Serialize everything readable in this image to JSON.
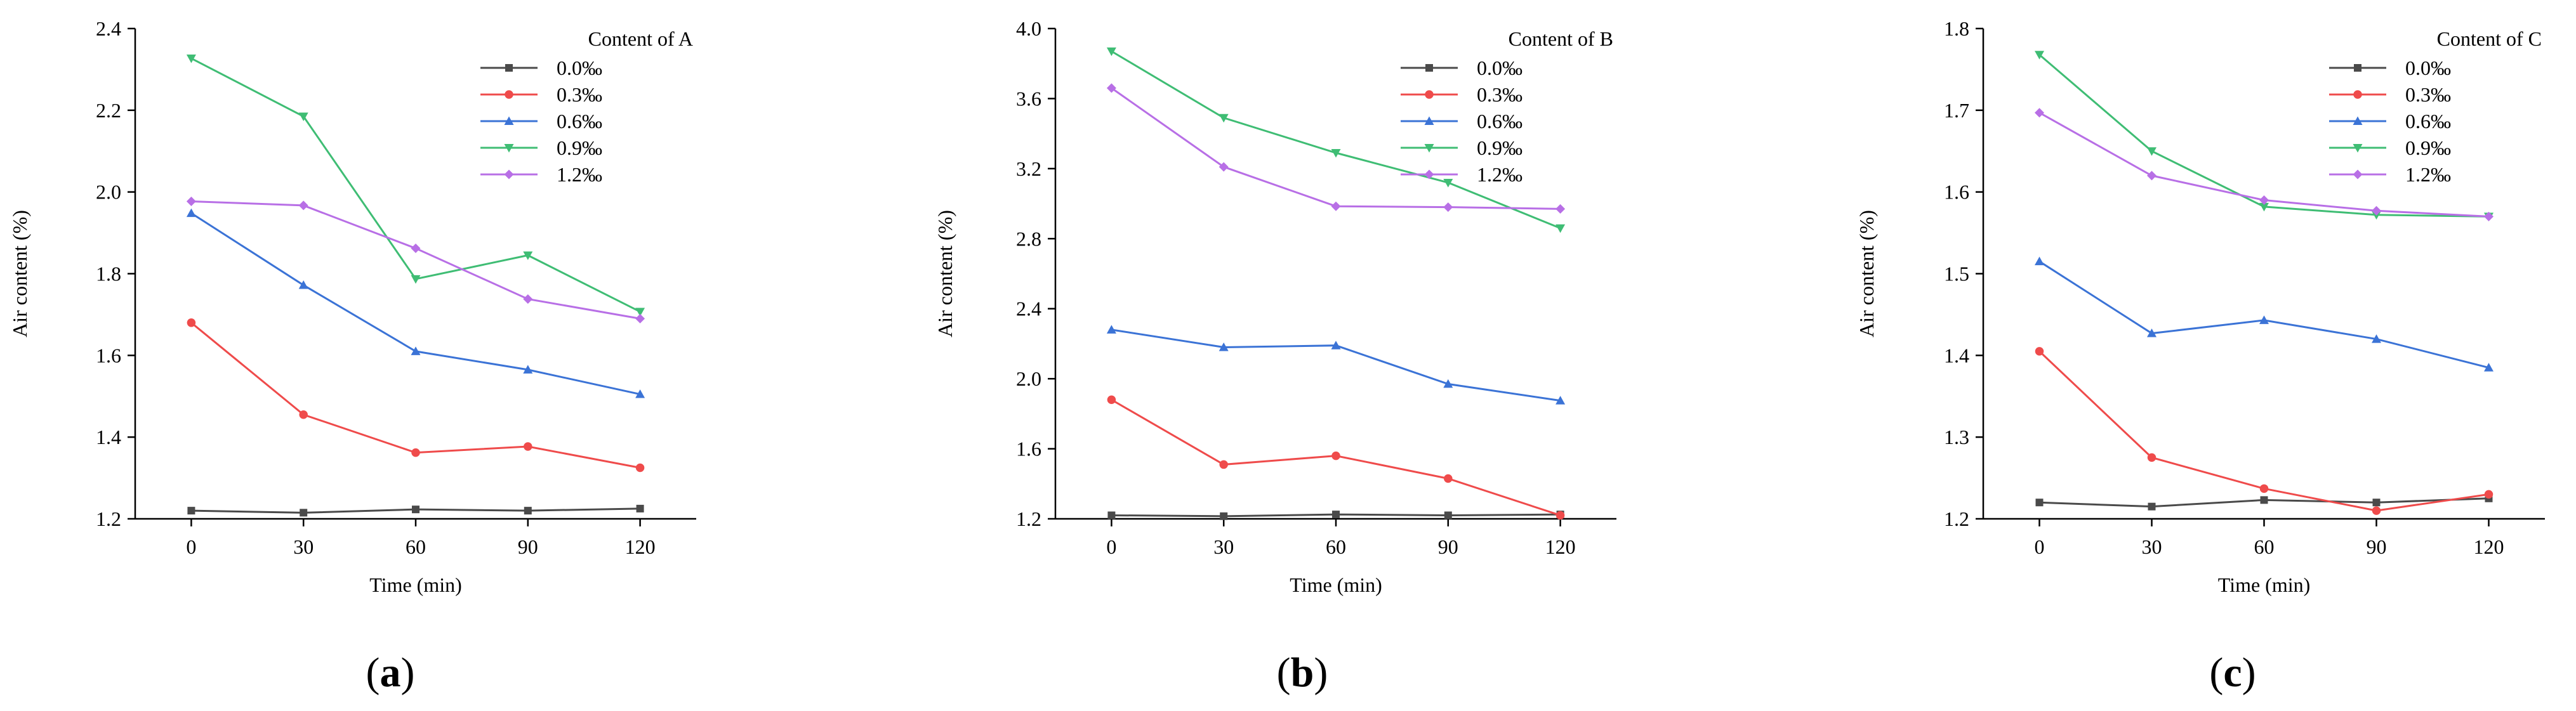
{
  "figure": {
    "captions": [
      {
        "open": "(",
        "letter": "a",
        "close": ")"
      },
      {
        "open": "(",
        "letter": "b",
        "close": ")"
      },
      {
        "open": "(",
        "letter": "c",
        "close": ")"
      }
    ]
  },
  "chart_data": [
    {
      "type": "line",
      "panel": "a",
      "title": "",
      "xlabel": "Time (min)",
      "ylabel": "Air content (%)",
      "x": [
        0,
        30,
        60,
        90,
        120
      ],
      "xlim": [
        -15,
        135
      ],
      "ylim": [
        1.2,
        2.4
      ],
      "xticks": [
        "0",
        "30",
        "60",
        "90",
        "120"
      ],
      "yticks": [
        "1.2",
        "1.4",
        "1.6",
        "1.8",
        "2.0",
        "2.2",
        "2.4"
      ],
      "legend_title": "Content of A",
      "legend_position": "top-right",
      "series": [
        {
          "name": "0.0‰",
          "color": "#4a4a4a",
          "marker": "square",
          "values": [
            1.22,
            1.215,
            1.223,
            1.22,
            1.225
          ]
        },
        {
          "name": "0.3‰",
          "color": "#ef4b4b",
          "marker": "circle",
          "values": [
            1.68,
            1.455,
            1.362,
            1.377,
            1.325
          ]
        },
        {
          "name": "0.6‰",
          "color": "#3b73d6",
          "marker": "triangle-up",
          "values": [
            1.948,
            1.772,
            1.61,
            1.565,
            1.505
          ]
        },
        {
          "name": "0.9‰",
          "color": "#3fbd74",
          "marker": "triangle-down",
          "values": [
            2.327,
            2.185,
            1.787,
            1.845,
            1.707
          ]
        },
        {
          "name": "1.2‰",
          "color": "#b86fe6",
          "marker": "diamond",
          "values": [
            1.977,
            1.967,
            1.862,
            1.738,
            1.69
          ]
        }
      ]
    },
    {
      "type": "line",
      "panel": "b",
      "title": "",
      "xlabel": "Time (min)",
      "ylabel": "Air content (%)",
      "x": [
        0,
        30,
        60,
        90,
        120
      ],
      "xlim": [
        -15,
        135
      ],
      "ylim": [
        1.2,
        4.0
      ],
      "xticks": [
        "0",
        "30",
        "60",
        "90",
        "120"
      ],
      "yticks": [
        "1.2",
        "1.6",
        "2.0",
        "2.4",
        "2.8",
        "3.2",
        "3.6",
        "4.0"
      ],
      "legend_title": "Content of B",
      "legend_position": "top-right",
      "series": [
        {
          "name": "0.0‰",
          "color": "#4a4a4a",
          "marker": "square",
          "values": [
            1.22,
            1.215,
            1.225,
            1.22,
            1.225
          ]
        },
        {
          "name": "0.3‰",
          "color": "#ef4b4b",
          "marker": "circle",
          "values": [
            1.88,
            1.51,
            1.56,
            1.43,
            1.22
          ]
        },
        {
          "name": "0.6‰",
          "color": "#3b73d6",
          "marker": "triangle-up",
          "values": [
            2.28,
            2.18,
            2.19,
            1.97,
            1.875
          ]
        },
        {
          "name": "0.9‰",
          "color": "#3fbd74",
          "marker": "triangle-down",
          "values": [
            3.87,
            3.49,
            3.29,
            3.12,
            2.86
          ]
        },
        {
          "name": "1.2‰",
          "color": "#b86fe6",
          "marker": "diamond",
          "values": [
            3.66,
            3.21,
            2.985,
            2.98,
            2.97
          ]
        }
      ]
    },
    {
      "type": "line",
      "panel": "c",
      "title": "",
      "xlabel": "Time (min)",
      "ylabel": "Air content (%)",
      "x": [
        0,
        30,
        60,
        90,
        120
      ],
      "xlim": [
        -15,
        135
      ],
      "ylim": [
        1.2,
        1.8
      ],
      "xticks": [
        "0",
        "30",
        "60",
        "90",
        "120"
      ],
      "yticks": [
        "1.2",
        "1.3",
        "1.4",
        "1.5",
        "1.6",
        "1.7",
        "1.8"
      ],
      "legend_title": "Content of C",
      "legend_position": "top-right",
      "series": [
        {
          "name": "0.0‰",
          "color": "#4a4a4a",
          "marker": "square",
          "values": [
            1.22,
            1.215,
            1.223,
            1.22,
            1.225
          ]
        },
        {
          "name": "0.3‰",
          "color": "#ef4b4b",
          "marker": "circle",
          "values": [
            1.405,
            1.275,
            1.237,
            1.21,
            1.23
          ]
        },
        {
          "name": "0.6‰",
          "color": "#3b73d6",
          "marker": "triangle-up",
          "values": [
            1.515,
            1.427,
            1.443,
            1.42,
            1.385
          ]
        },
        {
          "name": "0.9‰",
          "color": "#3fbd74",
          "marker": "triangle-down",
          "values": [
            1.768,
            1.65,
            1.582,
            1.572,
            1.57
          ]
        },
        {
          "name": "1.2‰",
          "color": "#b86fe6",
          "marker": "diamond",
          "values": [
            1.697,
            1.62,
            1.59,
            1.577,
            1.57
          ]
        }
      ]
    }
  ]
}
